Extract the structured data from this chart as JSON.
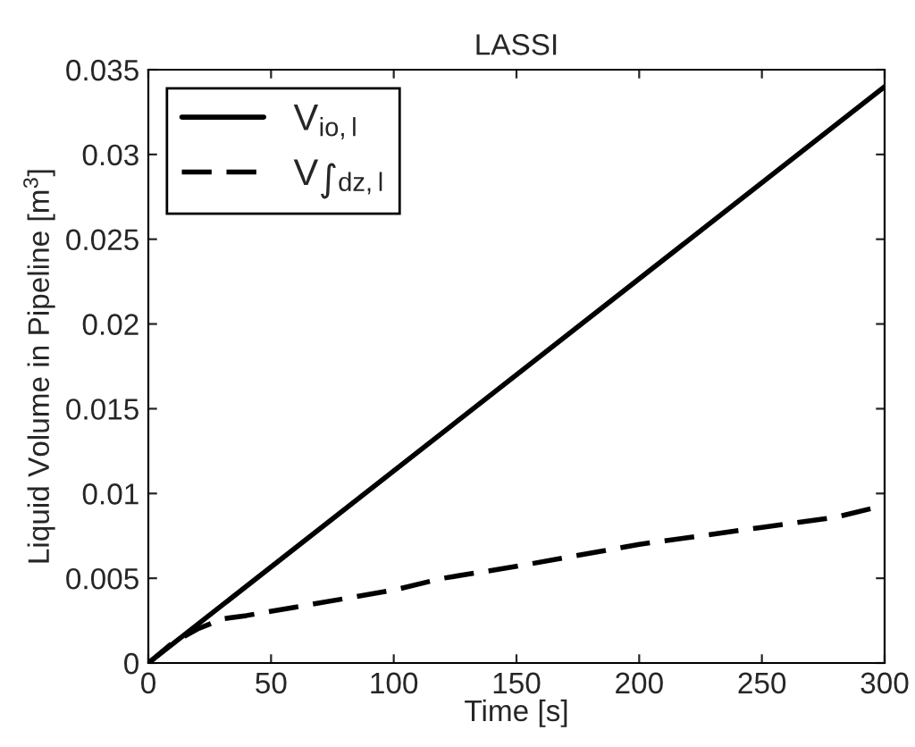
{
  "chart_data": {
    "type": "line",
    "title": "LASSI",
    "xlabel": "Time [s]",
    "ylabel": "Liquid Volume in Pipeline [m$^{3}$]",
    "series": [
      {
        "name": "V$_{io,l}$",
        "color": "#000000",
        "line_style": "solid",
        "x": [
          0,
          300
        ],
        "values": [
          0,
          0.034
        ]
      },
      {
        "name": "V$_{∫dz,l}$",
        "color": "#000000",
        "line_style": "dashed",
        "x": [
          0,
          10,
          20,
          30,
          40,
          60,
          80,
          100,
          120,
          150,
          200,
          250,
          280,
          300
        ],
        "values": [
          0,
          0.0012,
          0.002,
          0.0026,
          0.0028,
          0.0033,
          0.0038,
          0.0043,
          0.005,
          0.0057,
          0.007,
          0.008,
          0.0086,
          0.0093
        ]
      }
    ],
    "xlim": [
      0,
      300
    ],
    "xticks": [
      0,
      50,
      100,
      150,
      200,
      250,
      300
    ],
    "ylim": [
      0,
      0.035
    ],
    "yticks": [
      0,
      0.005,
      0.01,
      0.015,
      0.02,
      0.025,
      0.03,
      0.035
    ],
    "grid": false,
    "legend": "top left"
  }
}
